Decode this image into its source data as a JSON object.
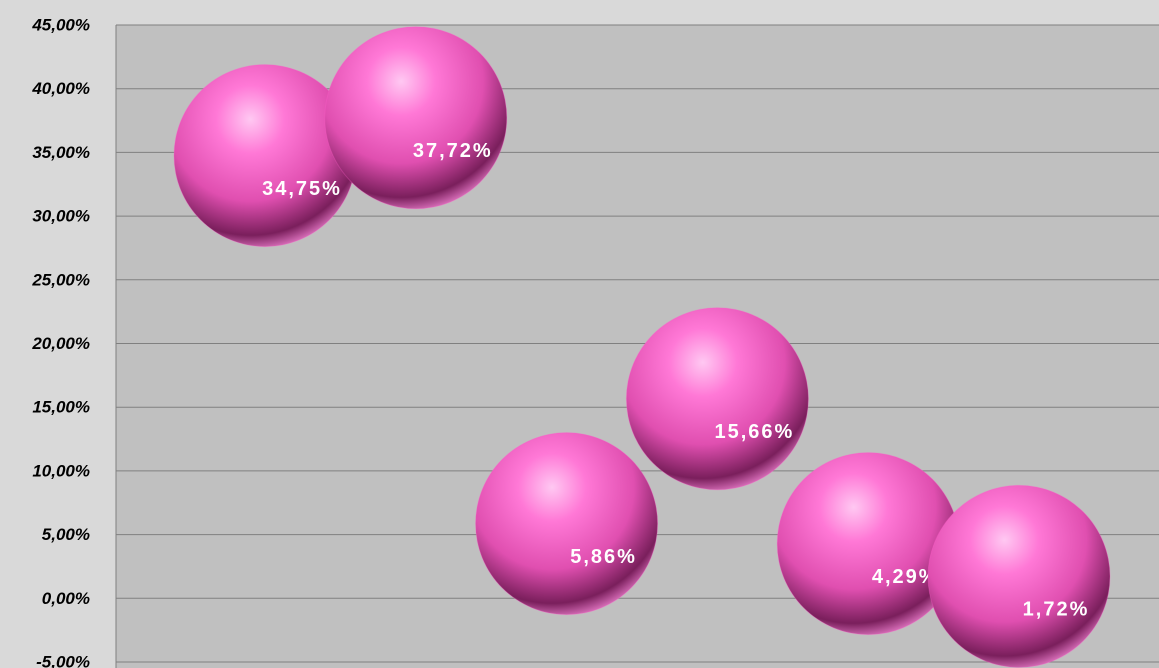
{
  "chart_data": {
    "type": "bubble",
    "color": "#ff5ecb",
    "values": [
      34.75,
      37.72,
      5.86,
      15.66,
      4.29,
      1.72
    ],
    "value_labels": [
      "34,75%",
      "37,72%",
      "5,86%",
      "15,66%",
      "4,29%",
      "1,72%"
    ],
    "ylim": [
      -5,
      45
    ],
    "yticks": [
      {
        "value": -5,
        "label": "-5,00%"
      },
      {
        "value": 0,
        "label": "0,00%"
      },
      {
        "value": 5,
        "label": "5,00%"
      },
      {
        "value": 10,
        "label": "10,00%"
      },
      {
        "value": 15,
        "label": "15,00%"
      },
      {
        "value": 20,
        "label": "20,00%"
      },
      {
        "value": 25,
        "label": "25,00%"
      },
      {
        "value": 30,
        "label": "30,00%"
      },
      {
        "value": 35,
        "label": "35,00%"
      },
      {
        "value": 40,
        "label": "40,00%"
      },
      {
        "value": 45,
        "label": "45,00%"
      }
    ],
    "grid": true
  }
}
